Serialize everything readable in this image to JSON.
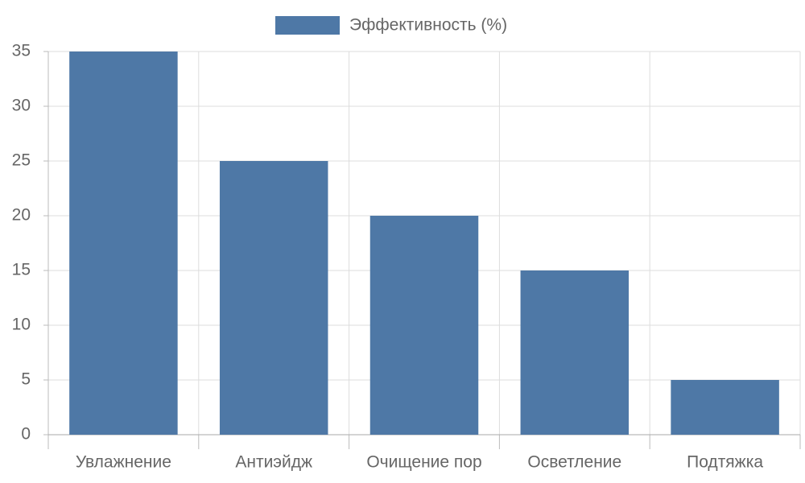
{
  "chart_data": {
    "type": "bar",
    "categories": [
      "Увлажнение",
      "Антиэйдж",
      "Очищение пор",
      "Осветление",
      "Подтяжка"
    ],
    "series": [
      {
        "name": "Эффективность (%)",
        "color": "#4e78a6",
        "values": [
          35,
          25,
          20,
          15,
          5
        ]
      }
    ],
    "ylim": [
      0,
      35
    ],
    "yticks": [
      0,
      5,
      10,
      15,
      20,
      25,
      30,
      35
    ],
    "grid": true,
    "legend": "top"
  }
}
